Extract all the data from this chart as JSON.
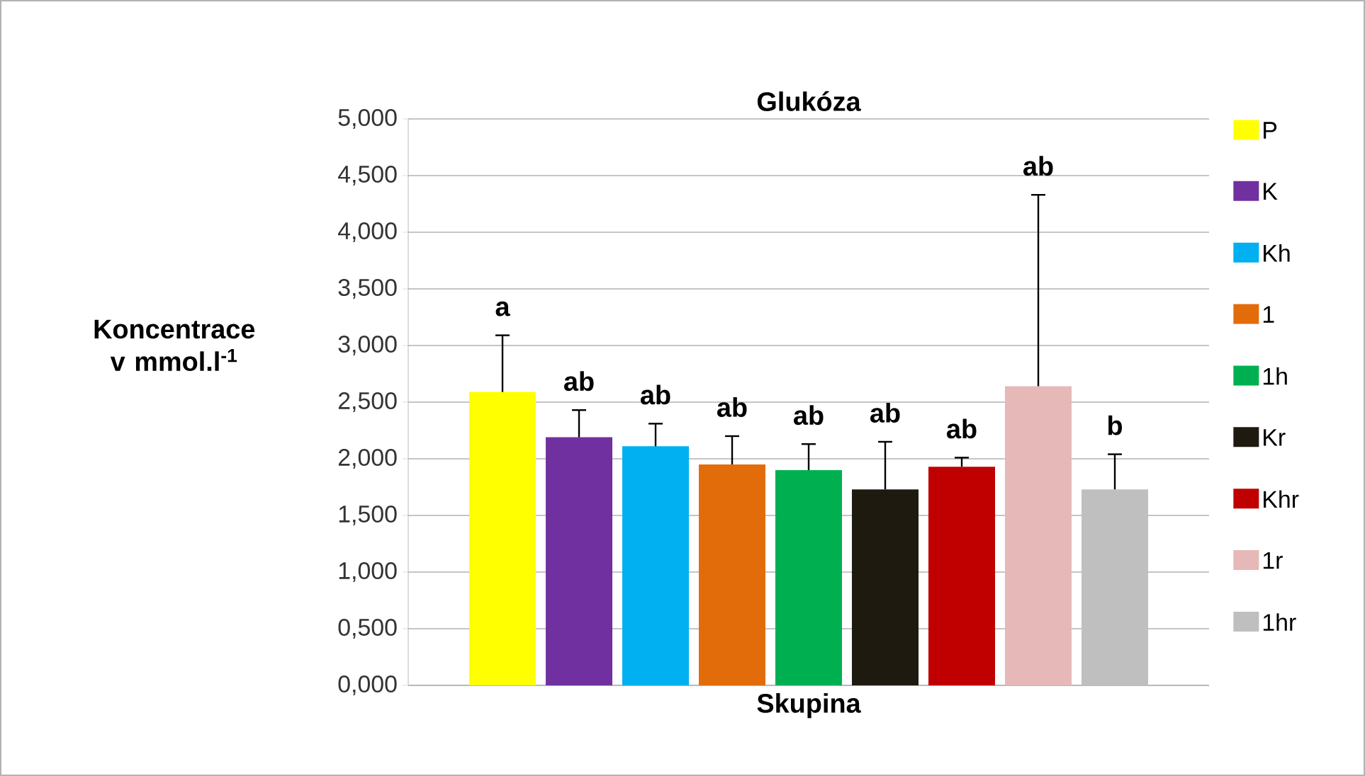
{
  "chart_data": {
    "type": "bar",
    "title": "Glukóza",
    "xlabel": "Skupina",
    "ylabel": "Koncentrace v mmol.l$^{-1}$",
    "categories": [
      null
    ],
    "series": [
      {
        "name": "P",
        "color": "#ffff00",
        "values": [
          2.59
        ],
        "errors": [
          0.5
        ]
      },
      {
        "name": "K",
        "color": "#7030a0",
        "values": [
          2.19
        ],
        "errors": [
          0.24
        ]
      },
      {
        "name": "Kh",
        "color": "#00b0f0",
        "values": [
          2.11
        ],
        "errors": [
          0.2
        ]
      },
      {
        "name": "1",
        "color": "#e36c0a",
        "values": [
          1.95
        ],
        "errors": [
          0.25
        ]
      },
      {
        "name": "1h",
        "color": "#00b050",
        "values": [
          1.9
        ],
        "errors": [
          0.23
        ]
      },
      {
        "name": "Kr",
        "color": "#1f1a10",
        "values": [
          1.73
        ],
        "errors": [
          0.42
        ]
      },
      {
        "name": "Khr",
        "color": "#c00000",
        "values": [
          1.93
        ],
        "errors": [
          0.08
        ]
      },
      {
        "name": "1r",
        "color": "#e6b8b7",
        "values": [
          2.64
        ],
        "errors": [
          1.69
        ]
      },
      {
        "name": "1hr",
        "color": "#bfbfbf",
        "values": [
          1.73
        ],
        "errors": [
          0.31
        ]
      }
    ],
    "annotations": [
      "a",
      "ab",
      "ab",
      "ab",
      "ab",
      "ab",
      "ab",
      "ab",
      "b"
    ],
    "ylim": [
      0,
      5
    ],
    "yticks": [
      {
        "value": 0,
        "label": "0,000"
      },
      {
        "value": 0.5,
        "label": "0,500"
      },
      {
        "value": 1,
        "label": "1,000"
      },
      {
        "value": 1.5,
        "label": "1,500"
      },
      {
        "value": 2,
        "label": "2,000"
      },
      {
        "value": 2.5,
        "label": "2,500"
      },
      {
        "value": 3,
        "label": "3,000"
      },
      {
        "value": 3.5,
        "label": "3,500"
      },
      {
        "value": 4,
        "label": "4,000"
      },
      {
        "value": 4.5,
        "label": "4,500"
      },
      {
        "value": 5,
        "label": "5,000"
      }
    ],
    "grid": "y",
    "legend": "right"
  }
}
